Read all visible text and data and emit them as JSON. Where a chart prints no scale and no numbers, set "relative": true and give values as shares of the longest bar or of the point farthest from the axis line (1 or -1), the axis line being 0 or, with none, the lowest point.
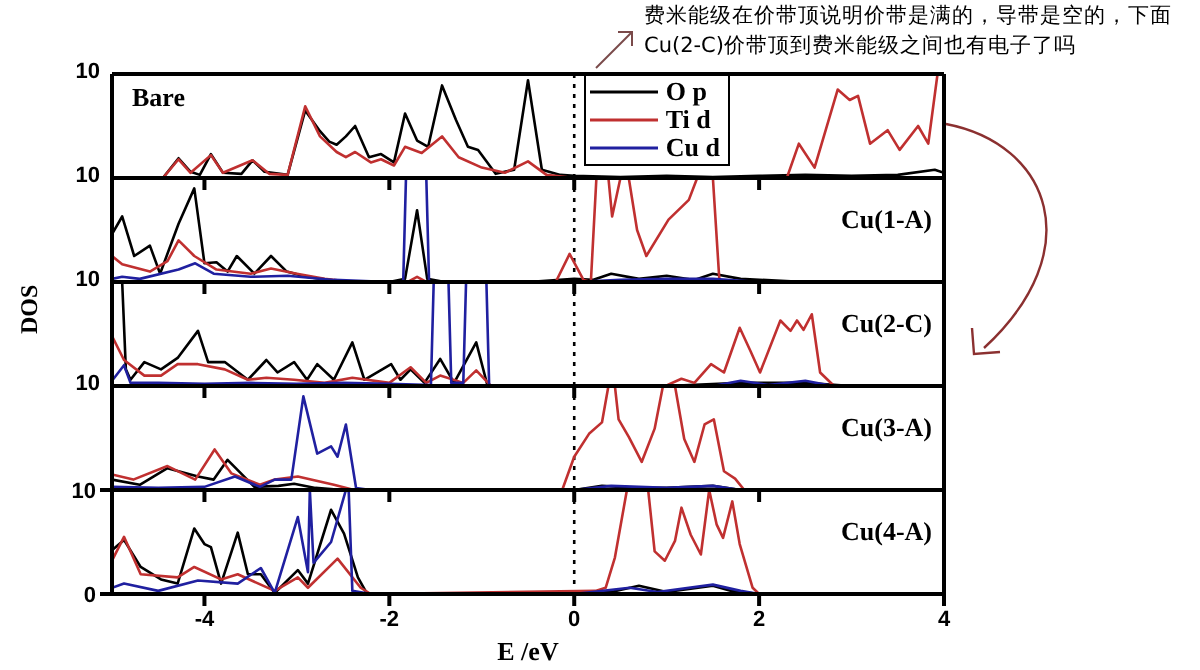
{
  "chart_data": [
    {
      "type": "line",
      "title": "Bare",
      "relative": true,
      "annotations": [
        "10",
        "费米能级在价带顶说明价带是满的，导带是空的，下面 Cu(2-C)价带顶到费米能级之间也有电子了吗"
      ],
      "legend": "top",
      "marker": "none",
      "tick_labels": false,
      "xlim": [
        -5,
        4
      ],
      "xticks": [
        -4,
        -2,
        0,
        2,
        4
      ],
      "ref_lines": [
        {
          "axis": "x",
          "value": 0,
          "color": "#000000",
          "line_style": "dotted"
        }
      ],
      "series": [
        {
          "name": "O p",
          "color": "#000000",
          "x": [
            -5,
            -4.45,
            -4.28,
            -4.15,
            -4.05,
            -3.93,
            -3.8,
            -3.6,
            -3.48,
            -3.35,
            -3.1,
            -2.91,
            -2.75,
            -2.65,
            -2.57,
            -2.47,
            -2.37,
            -2.22,
            -2.09,
            -1.95,
            -1.83,
            -1.7,
            -1.58,
            -1.43,
            -1.28,
            -1.15,
            -1.04,
            -0.85,
            -0.65,
            -0.5,
            -0.35,
            -0.15,
            0,
            0.5,
            1,
            1.5,
            2,
            2.5,
            3,
            3.5,
            3.9,
            4
          ],
          "values": [
            0,
            0,
            0.19,
            0.06,
            0.03,
            0.23,
            0.05,
            0.04,
            0.17,
            0.06,
            0.03,
            0.65,
            0.45,
            0.35,
            0.32,
            0.4,
            0.5,
            0.2,
            0.23,
            0.15,
            0.62,
            0.36,
            0.3,
            0.89,
            0.56,
            0.3,
            0.27,
            0.04,
            0.08,
            0.94,
            0.08,
            0.03,
            0.02,
            0.01,
            0.02,
            0.01,
            0.02,
            0.03,
            0.02,
            0.03,
            0.08,
            0.05
          ]
        },
        {
          "name": "Ti d",
          "color": "#c03030",
          "x": [
            -5,
            -4.45,
            -4.28,
            -4.15,
            -3.93,
            -3.8,
            -3.48,
            -3.3,
            -3.1,
            -2.91,
            -2.75,
            -2.57,
            -2.47,
            -2.37,
            -2.2,
            -2.09,
            -1.95,
            -1.83,
            -1.65,
            -1.43,
            -1.25,
            -1.0,
            -0.75,
            -0.5,
            -0.3,
            0,
            0.5,
            1.0,
            1.5,
            2.0,
            2.3,
            2.43,
            2.6,
            2.85,
            2.98,
            3.07,
            3.2,
            3.39,
            3.52,
            3.72,
            3.83,
            3.93,
            4
          ],
          "values": [
            0,
            0,
            0.18,
            0.05,
            0.22,
            0.05,
            0.17,
            0.04,
            0.03,
            0.69,
            0.4,
            0.25,
            0.2,
            0.25,
            0.15,
            0.18,
            0.12,
            0.3,
            0.24,
            0.4,
            0.2,
            0.1,
            0.05,
            0.16,
            0.03,
            0,
            0,
            0,
            0,
            0,
            0,
            0.33,
            0.1,
            0.85,
            0.75,
            0.79,
            0.33,
            0.46,
            0.27,
            0.5,
            0.33,
            1,
            1
          ]
        },
        {
          "name": "Cu d",
          "color": "#2020a0"
        }
      ]
    },
    {
      "type": "line",
      "title": "Cu(1-A)",
      "relative": true,
      "annotations": [
        "10"
      ],
      "marker": "none",
      "tick_labels": false,
      "xlim": [
        -5,
        4
      ],
      "xticks": [
        -4,
        -2,
        0,
        2,
        4
      ],
      "ref_lines": [
        {
          "axis": "x",
          "value": 0,
          "color": "#000000",
          "line_style": "dotted"
        }
      ],
      "series": [
        {
          "color": "#000000",
          "x": [
            -5,
            -4.89,
            -4.76,
            -4.59,
            -4.48,
            -4.28,
            -4.11,
            -4.0,
            -3.87,
            -3.75,
            -3.65,
            -3.46,
            -3.28,
            -3.11,
            -2.9,
            -2.74,
            -2.46,
            -2.0,
            -1.83,
            -1.7,
            -1.59,
            -1.4,
            -0.5,
            0,
            0.2,
            0.4,
            0.7,
            1.0,
            1.3,
            1.5,
            1.8,
            2.5,
            4
          ],
          "values": [
            0.46,
            0.63,
            0.25,
            0.35,
            0.08,
            0.56,
            0.9,
            0.18,
            0.19,
            0.1,
            0.25,
            0.08,
            0.25,
            0.1,
            0.05,
            0.03,
            0,
            0,
            0.03,
            0.69,
            0.03,
            0,
            0,
            0.03,
            0.02,
            0.08,
            0.03,
            0.06,
            0.02,
            0.08,
            0.03,
            0,
            0
          ]
        },
        {
          "color": "#c03030",
          "x": [
            -5,
            -4.89,
            -4.59,
            -4.4,
            -4.28,
            -4.11,
            -3.87,
            -3.5,
            -3.28,
            -3.0,
            -2.7,
            -2.4,
            -1.8,
            -1.7,
            -1.6,
            -0.2,
            -0.05,
            0.1,
            0.18,
            0.24,
            0.33,
            0.37,
            0.41,
            0.5,
            0.59,
            0.68,
            0.78,
            1.02,
            1.24,
            1.33,
            1.43,
            1.5,
            1.57,
            1.65,
            2,
            4
          ],
          "values": [
            0.25,
            0.17,
            0.1,
            0.2,
            0.4,
            0.25,
            0.12,
            0.08,
            0.13,
            0.08,
            0.03,
            0,
            0,
            0.05,
            0,
            0,
            0.27,
            0.02,
            0,
            1,
            1,
            1,
            0.63,
            1,
            1,
            0.5,
            0.25,
            0.6,
            0.79,
            1,
            1,
            1,
            0.02,
            0,
            0,
            0
          ]
        },
        {
          "color": "#2020a0",
          "x": [
            -5,
            -4.89,
            -4.7,
            -4.28,
            -4.1,
            -3.9,
            -3.5,
            -3.1,
            -2.6,
            -2.0,
            -1.85,
            -1.82,
            -1.6,
            -1.57,
            -1.4,
            0,
            0.5,
            1.0,
            1.5,
            2,
            4
          ],
          "values": [
            0.03,
            0.05,
            0.03,
            0.12,
            0.18,
            0.08,
            0.05,
            0.06,
            0.02,
            0,
            0,
            1,
            1,
            0,
            0,
            0,
            0.02,
            0.03,
            0.03,
            0,
            0
          ]
        }
      ]
    },
    {
      "type": "line",
      "title": "Cu(2-C)",
      "relative": true,
      "annotations": [
        "10"
      ],
      "ylabel": "DOS",
      "marker": "none",
      "tick_labels": false,
      "xlim": [
        -5,
        4
      ],
      "xticks": [
        -4,
        -2,
        0,
        2,
        4
      ],
      "ref_lines": [
        {
          "axis": "x",
          "value": 0,
          "color": "#000000",
          "line_style": "dotted"
        }
      ],
      "series": [
        {
          "color": "#000000",
          "x": [
            -5,
            -4.89,
            -4.85,
            -4.8,
            -4.65,
            -4.47,
            -4.29,
            -4.07,
            -3.96,
            -3.78,
            -3.53,
            -3.33,
            -3.21,
            -3.03,
            -2.89,
            -2.78,
            -2.6,
            -2.4,
            -2.27,
            -1.98,
            -1.88,
            -1.77,
            -1.62,
            -1.45,
            -1.3,
            -1.06,
            -0.94,
            -0.8,
            1.0,
            1.8,
            2.5,
            3,
            4
          ],
          "values": [
            1,
            1,
            0.16,
            0.06,
            0.23,
            0.16,
            0.27,
            0.53,
            0.23,
            0.23,
            0.06,
            0.25,
            0.13,
            0.23,
            0.06,
            0.21,
            0.06,
            0.42,
            0.06,
            0.21,
            0.06,
            0.16,
            0.03,
            0.26,
            0.03,
            0.42,
            0.01,
            0,
            0,
            0.03,
            0.03,
            0,
            0
          ]
        },
        {
          "color": "#c03030",
          "x": [
            -5,
            -4.87,
            -4.65,
            -4.47,
            -4.29,
            -4.07,
            -3.78,
            -3.53,
            -3.33,
            -3.03,
            -2.7,
            -2.4,
            -2.0,
            -1.77,
            -1.6,
            -1.45,
            -1.2,
            -1.06,
            -0.9,
            1.01,
            1.16,
            1.3,
            1.48,
            1.62,
            1.79,
            1.91,
            2.01,
            2.23,
            2.34,
            2.41,
            2.48,
            2.57,
            2.66,
            2.8,
            2.94,
            4
          ],
          "values": [
            0.48,
            0.25,
            0.1,
            0.1,
            0.21,
            0.21,
            0.16,
            0.06,
            0.08,
            0.06,
            0.03,
            0.08,
            0.03,
            0.18,
            0.03,
            0.1,
            0.03,
            0.15,
            0,
            0.01,
            0.07,
            0.03,
            0.21,
            0.13,
            0.56,
            0.33,
            0.13,
            0.63,
            0.53,
            0.63,
            0.54,
            0.69,
            0.13,
            0.01,
            0,
            0
          ]
        },
        {
          "color": "#2020a0",
          "x": [
            -5,
            -4.87,
            -4.8,
            -4.5,
            -4.0,
            -3.5,
            -3.0,
            -2.5,
            -2.0,
            -1.55,
            -1.52,
            -1.36,
            -1.33,
            -1.3,
            -1.2,
            -1.17,
            -0.95,
            -0.92,
            0,
            1.5,
            1.8,
            2.1,
            2.5,
            2.8,
            4
          ],
          "values": [
            0.05,
            0.2,
            0.03,
            0.03,
            0.02,
            0.03,
            0.02,
            0.03,
            0.02,
            0.01,
            1,
            1,
            0.03,
            0.03,
            0.03,
            1,
            1,
            0,
            0,
            0,
            0.05,
            0.01,
            0.05,
            0,
            0
          ]
        }
      ]
    },
    {
      "type": "line",
      "title": "Cu(3-A)",
      "relative": true,
      "annotations": [
        "10"
      ],
      "marker": "none",
      "tick_labels": false,
      "xlim": [
        -5,
        4
      ],
      "xticks": [
        -4,
        -2,
        0,
        2,
        4
      ],
      "ref_lines": [
        {
          "axis": "x",
          "value": 0,
          "color": "#000000",
          "line_style": "dotted"
        }
      ],
      "series": [
        {
          "color": "#000000",
          "x": [
            -5,
            -4.7,
            -4.4,
            -4.07,
            -3.9,
            -3.75,
            -3.46,
            -3.2,
            -3.03,
            -2.8,
            -2.5,
            0,
            0.3,
            0.7,
            1.0,
            1.5,
            1.8,
            4
          ],
          "values": [
            0.1,
            0.05,
            0.21,
            0.13,
            0.1,
            0.29,
            0.03,
            0.04,
            0.06,
            0.02,
            0,
            0,
            0.04,
            0.02,
            0.02,
            0.04,
            0,
            0
          ]
        },
        {
          "color": "#c03030",
          "x": [
            -5,
            -4.77,
            -4.4,
            -4.1,
            -3.89,
            -3.71,
            -3.4,
            -3.24,
            -2.99,
            -2.6,
            -2.38,
            -0.13,
            0,
            0.16,
            0.3,
            0.37,
            0.44,
            0.48,
            0.59,
            0.73,
            0.87,
            0.96,
            1.09,
            1.19,
            1.3,
            1.41,
            1.51,
            1.62,
            1.74,
            1.84,
            4
          ],
          "values": [
            0.15,
            0.1,
            0.23,
            0.1,
            0.39,
            0.16,
            0.05,
            0.1,
            0.13,
            0.05,
            0,
            0,
            0.32,
            0.54,
            0.65,
            1,
            1,
            0.68,
            0.51,
            0.27,
            0.59,
            1,
            1,
            0.49,
            0.27,
            0.63,
            0.68,
            0.18,
            0.11,
            0,
            0
          ]
        },
        {
          "color": "#2020a0",
          "x": [
            -5,
            -4.5,
            -4.0,
            -3.67,
            -3.4,
            -3.24,
            -3.06,
            -2.93,
            -2.78,
            -2.63,
            -2.56,
            -2.47,
            -2.36,
            -2.2,
            0,
            0.4,
            1.0,
            1.5,
            1.8,
            4
          ],
          "values": [
            0.03,
            0.02,
            0.03,
            0.13,
            0.03,
            0.1,
            0.1,
            0.9,
            0.35,
            0.42,
            0.32,
            0.63,
            0.02,
            0,
            0,
            0.04,
            0.02,
            0.04,
            0,
            0
          ]
        }
      ]
    },
    {
      "type": "line",
      "title": "Cu(4-A)",
      "xlabel": "E /eV",
      "marker": "none",
      "xlim": [
        -5,
        4
      ],
      "xticks": [
        -4,
        -2,
        0,
        2,
        4
      ],
      "ylim": [
        0,
        10
      ],
      "yticks": [
        0,
        10
      ],
      "ref_lines": [
        {
          "axis": "x",
          "value": 0,
          "color": "#000000",
          "line_style": "dotted"
        }
      ],
      "series": [
        {
          "color": "#000000",
          "x": [
            -5,
            -4.87,
            -4.69,
            -4.47,
            -4.29,
            -4.11,
            -4.0,
            -3.93,
            -3.82,
            -3.64,
            -3.53,
            -3.39,
            -3.24,
            -2.99,
            -2.88,
            -2.63,
            -2.49,
            -2.34,
            -2.24,
            0,
            0.4,
            0.7,
            1.0,
            1.5,
            1.7,
            2,
            4
          ],
          "values": [
            4.2,
            5.2,
            2.6,
            1.4,
            1.0,
            6.3,
            4.8,
            4.5,
            1.0,
            5.9,
            1.9,
            1.9,
            0.1,
            2.3,
            1.0,
            8.1,
            5.8,
            1.6,
            0,
            0,
            0.2,
            0.8,
            0.2,
            0.8,
            0.3,
            0,
            0
          ]
        },
        {
          "color": "#c03030",
          "x": [
            -5,
            -4.87,
            -4.69,
            -4.29,
            -4.11,
            -3.82,
            -3.64,
            -3.24,
            -2.99,
            -2.88,
            -2.56,
            -2.31,
            -2.2,
            0.23,
            0.34,
            0.44,
            0.57,
            0.8,
            0.87,
            0.98,
            1.09,
            1.16,
            1.26,
            1.37,
            1.46,
            1.54,
            1.61,
            1.71,
            1.79,
            1.93,
            2,
            4
          ],
          "values": [
            3.2,
            5.5,
            1.9,
            1.6,
            2.6,
            1.4,
            1.9,
            0.3,
            1.6,
            0.6,
            3.4,
            0.6,
            0,
            0.3,
            0.6,
            3.5,
            10,
            10,
            4.1,
            3.2,
            5.1,
            8.3,
            5.7,
            3.8,
            10,
            6.7,
            5.4,
            8.9,
            4.8,
            0.6,
            0,
            0
          ]
        },
        {
          "color": "#2020a0",
          "x": [
            -5,
            -4.87,
            -4.5,
            -4.07,
            -3.64,
            -3.39,
            -3.24,
            -2.99,
            -2.88,
            -2.86,
            -2.82,
            -2.63,
            -2.47,
            -2.44,
            -2.4,
            -2.2,
            0,
            0.6,
            0.9,
            1.5,
            1.8,
            2,
            4
          ],
          "values": [
            0.6,
            1,
            0.3,
            1.3,
            1,
            2.5,
            0.1,
            7.4,
            2.1,
            10,
            3,
            5,
            10,
            10,
            0.3,
            0,
            0,
            0.6,
            0.2,
            0.9,
            0.3,
            0,
            0
          ]
        }
      ]
    }
  ]
}
